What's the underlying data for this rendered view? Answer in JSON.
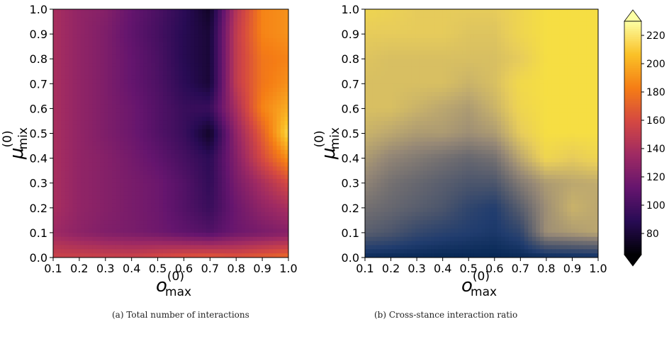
{
  "chart_data": [
    {
      "type": "heatmap",
      "title": "",
      "xlabel": "o",
      "xlabel_sub": "max",
      "xlabel_sup": "(0)",
      "ylabel": "μ",
      "ylabel_sub": "mix",
      "ylabel_sup": "(0)",
      "xlim": [
        0.1,
        1.0
      ],
      "ylim": [
        0.0,
        1.0
      ],
      "xticks": [
        "0.1",
        "0.2",
        "0.3",
        "0.4",
        "0.5",
        "0.6",
        "0.7",
        "0.8",
        "0.9",
        "1.0"
      ],
      "yticks": [
        "0.0",
        "0.1",
        "0.2",
        "0.3",
        "0.4",
        "0.5",
        "0.6",
        "0.7",
        "0.8",
        "0.9",
        "1.0"
      ],
      "colormap": "inferno",
      "vmin": 65,
      "vmax": 230,
      "x": [
        0.1,
        0.2,
        0.3,
        0.4,
        0.5,
        0.6,
        0.7,
        0.8,
        0.9,
        1.0
      ],
      "y": [
        0.0,
        0.1,
        0.2,
        0.3,
        0.4,
        0.5,
        0.6,
        0.7,
        0.8,
        0.9,
        1.0
      ],
      "z": [
        [
          155,
          155,
          155,
          155,
          160,
          165,
          168,
          165,
          170,
          175
        ],
        [
          135,
          128,
          123,
          120,
          116,
          110,
          105,
          115,
          120,
          125
        ],
        [
          140,
          130,
          125,
          120,
          115,
          105,
          95,
          115,
          130,
          140
        ],
        [
          140,
          130,
          125,
          120,
          115,
          105,
          92,
          120,
          140,
          160
        ],
        [
          140,
          130,
          125,
          118,
          110,
          100,
          90,
          125,
          160,
          190
        ],
        [
          140,
          130,
          122,
          115,
          105,
          95,
          75,
          130,
          170,
          215
        ],
        [
          140,
          130,
          122,
          115,
          105,
          95,
          95,
          140,
          185,
          200
        ],
        [
          140,
          130,
          122,
          112,
          103,
          90,
          80,
          150,
          180,
          190
        ],
        [
          140,
          130,
          122,
          112,
          102,
          88,
          80,
          150,
          180,
          185
        ],
        [
          140,
          130,
          122,
          110,
          100,
          88,
          80,
          150,
          185,
          190
        ],
        [
          140,
          130,
          125,
          112,
          102,
          90,
          75,
          145,
          185,
          190
        ]
      ],
      "caption": "(a) Total number of interactions"
    },
    {
      "type": "heatmap",
      "title": "",
      "xlabel": "o",
      "xlabel_sub": "max",
      "xlabel_sup": "(0)",
      "ylabel": "μ",
      "ylabel_sub": "mix",
      "ylabel_sup": "(0)",
      "xlim": [
        0.1,
        1.0
      ],
      "ylim": [
        0.0,
        1.0
      ],
      "xticks": [
        "0.1",
        "0.2",
        "0.3",
        "0.4",
        "0.5",
        "0.6",
        "0.7",
        "0.8",
        "0.9",
        "1.0"
      ],
      "yticks": [
        "0.0",
        "0.1",
        "0.2",
        "0.3",
        "0.4",
        "0.5",
        "0.6",
        "0.7",
        "0.8",
        "0.9",
        "1.0"
      ],
      "colormap": "cividis",
      "x": [
        0.1,
        0.2,
        0.3,
        0.4,
        0.5,
        0.6,
        0.7,
        0.8,
        0.9,
        1.0
      ],
      "y": [
        0.0,
        0.1,
        0.2,
        0.3,
        0.4,
        0.5,
        0.6,
        0.7,
        0.8,
        0.9,
        1.0
      ],
      "z": [
        [
          0.05,
          0.04,
          0.04,
          0.03,
          0.03,
          0.03,
          0.04,
          0.05,
          0.06,
          0.07
        ],
        [
          0.35,
          0.3,
          0.22,
          0.18,
          0.15,
          0.12,
          0.2,
          0.6,
          0.65,
          0.7
        ],
        [
          0.45,
          0.4,
          0.35,
          0.3,
          0.2,
          0.15,
          0.35,
          0.6,
          0.75,
          0.7
        ],
        [
          0.55,
          0.45,
          0.4,
          0.35,
          0.3,
          0.3,
          0.5,
          0.65,
          0.7,
          0.72
        ],
        [
          0.65,
          0.55,
          0.5,
          0.45,
          0.4,
          0.45,
          0.7,
          0.9,
          0.85,
          0.9
        ],
        [
          0.75,
          0.7,
          0.65,
          0.65,
          0.6,
          0.65,
          0.85,
          0.95,
          0.95,
          0.95
        ],
        [
          0.8,
          0.8,
          0.75,
          0.7,
          0.65,
          0.75,
          0.9,
          0.95,
          0.95,
          0.95
        ],
        [
          0.8,
          0.8,
          0.8,
          0.8,
          0.75,
          0.8,
          0.92,
          0.95,
          0.95,
          0.95
        ],
        [
          0.82,
          0.8,
          0.8,
          0.8,
          0.8,
          0.8,
          0.85,
          0.95,
          0.95,
          0.95
        ],
        [
          0.85,
          0.85,
          0.85,
          0.85,
          0.82,
          0.82,
          0.9,
          0.95,
          0.95,
          0.95
        ],
        [
          0.9,
          0.88,
          0.85,
          0.85,
          0.85,
          0.85,
          0.9,
          0.95,
          0.95,
          0.95
        ]
      ],
      "caption": "(b) Cross-stance interaction ratio"
    }
  ],
  "colorbar": {
    "colormap": "inferno",
    "vmin": 65,
    "vmax": 230,
    "ticks": [
      80,
      100,
      120,
      140,
      160,
      180,
      200,
      220
    ],
    "extend": "both"
  }
}
